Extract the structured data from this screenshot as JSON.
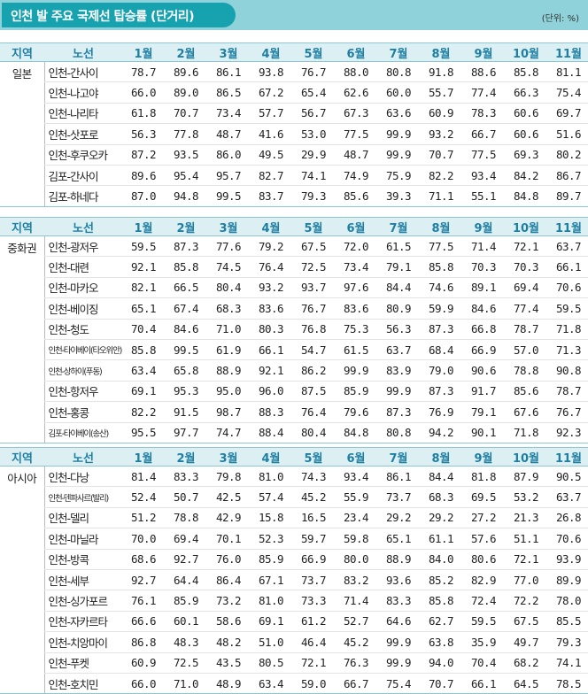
{
  "title": "인천 발 주요 국제선 탑승률 (단거리)",
  "unit": "(단위: %)",
  "header": {
    "region": "지역",
    "route": "노선",
    "months": [
      "1월",
      "2월",
      "3월",
      "4월",
      "5월",
      "6월",
      "7월",
      "8월",
      "9월",
      "10월",
      "11월"
    ]
  },
  "sections": [
    {
      "region": "일본",
      "rows": [
        {
          "route": "인천-간사이",
          "small": false,
          "values": [
            "78.7",
            "89.6",
            "86.1",
            "93.8",
            "76.7",
            "88.0",
            "80.8",
            "91.8",
            "88.6",
            "85.8",
            "81.1"
          ]
        },
        {
          "route": "인천-나고야",
          "small": false,
          "values": [
            "66.0",
            "89.0",
            "86.5",
            "67.2",
            "65.4",
            "62.6",
            "60.0",
            "55.7",
            "77.4",
            "66.3",
            "75.4"
          ]
        },
        {
          "route": "인천-나리타",
          "small": false,
          "values": [
            "61.8",
            "70.7",
            "73.4",
            "57.7",
            "56.7",
            "67.3",
            "63.6",
            "60.9",
            "78.3",
            "60.6",
            "69.7"
          ]
        },
        {
          "route": "인천-삿포로",
          "small": false,
          "values": [
            "56.3",
            "77.8",
            "48.7",
            "41.6",
            "53.0",
            "77.5",
            "99.9",
            "93.2",
            "66.7",
            "60.6",
            "51.6"
          ]
        },
        {
          "route": "인천-후쿠오카",
          "small": false,
          "values": [
            "87.2",
            "93.5",
            "86.0",
            "49.5",
            "29.9",
            "48.7",
            "99.9",
            "70.7",
            "77.5",
            "69.3",
            "80.2"
          ]
        },
        {
          "route": "김포-간사이",
          "small": false,
          "values": [
            "89.6",
            "95.4",
            "95.7",
            "82.7",
            "74.1",
            "74.9",
            "75.9",
            "82.2",
            "93.4",
            "84.2",
            "86.7"
          ]
        },
        {
          "route": "김포-하네다",
          "small": false,
          "values": [
            "87.0",
            "94.8",
            "99.5",
            "83.7",
            "79.3",
            "85.6",
            "39.3",
            "71.1",
            "55.1",
            "84.8",
            "89.7"
          ]
        }
      ]
    },
    {
      "region": "중화권",
      "rows": [
        {
          "route": "인천-광저우",
          "small": false,
          "values": [
            "59.5",
            "87.3",
            "77.6",
            "79.2",
            "67.5",
            "72.0",
            "61.5",
            "77.5",
            "71.4",
            "72.1",
            "63.7"
          ]
        },
        {
          "route": "인천-대련",
          "small": false,
          "values": [
            "92.1",
            "85.8",
            "74.5",
            "76.4",
            "72.5",
            "73.4",
            "79.1",
            "85.8",
            "70.3",
            "70.3",
            "66.1"
          ]
        },
        {
          "route": "인천-마카오",
          "small": false,
          "values": [
            "82.1",
            "66.5",
            "80.4",
            "93.2",
            "93.7",
            "97.6",
            "84.4",
            "74.6",
            "89.1",
            "69.4",
            "70.6"
          ]
        },
        {
          "route": "인천-베이징",
          "small": false,
          "values": [
            "65.1",
            "67.4",
            "68.3",
            "83.6",
            "76.7",
            "83.6",
            "80.9",
            "59.9",
            "84.6",
            "77.4",
            "59.5"
          ]
        },
        {
          "route": "인천-청도",
          "small": false,
          "values": [
            "70.4",
            "84.6",
            "71.0",
            "80.3",
            "76.8",
            "75.3",
            "56.3",
            "87.3",
            "66.8",
            "78.7",
            "71.8"
          ]
        },
        {
          "route": "인천-타이베이(타오위안)",
          "small": true,
          "values": [
            "85.8",
            "99.5",
            "61.9",
            "66.1",
            "54.7",
            "61.5",
            "63.7",
            "68.4",
            "66.9",
            "57.0",
            "71.3"
          ]
        },
        {
          "route": "인천-상하이(푸동)",
          "small": true,
          "values": [
            "63.4",
            "65.8",
            "88.9",
            "92.1",
            "86.2",
            "99.9",
            "83.9",
            "79.0",
            "90.6",
            "78.8",
            "90.8"
          ]
        },
        {
          "route": "인천-항저우",
          "small": false,
          "values": [
            "69.1",
            "95.3",
            "95.0",
            "96.0",
            "87.5",
            "85.9",
            "99.9",
            "87.3",
            "91.7",
            "85.6",
            "78.7"
          ]
        },
        {
          "route": "인천-홍콩",
          "small": false,
          "values": [
            "82.2",
            "91.5",
            "98.7",
            "88.3",
            "76.4",
            "79.6",
            "87.3",
            "76.9",
            "79.1",
            "67.6",
            "76.7"
          ]
        },
        {
          "route": "김포-타이베이(송산)",
          "small": true,
          "values": [
            "95.5",
            "97.7",
            "74.7",
            "88.4",
            "80.4",
            "84.8",
            "80.8",
            "94.2",
            "90.1",
            "71.8",
            "92.3"
          ]
        }
      ]
    },
    {
      "region": "아시아",
      "rows": [
        {
          "route": "인천-다낭",
          "small": false,
          "values": [
            "81.4",
            "83.3",
            "79.8",
            "81.0",
            "74.3",
            "93.4",
            "86.1",
            "84.4",
            "81.8",
            "87.9",
            "90.5"
          ]
        },
        {
          "route": "인천-덴파사르(발리)",
          "small": true,
          "values": [
            "52.4",
            "50.7",
            "42.5",
            "57.4",
            "45.2",
            "55.9",
            "73.7",
            "68.3",
            "69.5",
            "53.2",
            "63.7"
          ]
        },
        {
          "route": "인천-델리",
          "small": false,
          "values": [
            "51.2",
            "78.8",
            "42.9",
            "15.8",
            "16.5",
            "23.4",
            "29.2",
            "29.2",
            "27.2",
            "21.3",
            "26.8"
          ]
        },
        {
          "route": "인천-마닐라",
          "small": false,
          "values": [
            "70.0",
            "69.4",
            "70.1",
            "52.3",
            "59.7",
            "59.8",
            "65.1",
            "61.1",
            "57.6",
            "51.1",
            "70.6"
          ]
        },
        {
          "route": "인천-방콕",
          "small": false,
          "values": [
            "68.6",
            "92.7",
            "76.0",
            "85.9",
            "66.9",
            "80.0",
            "88.9",
            "84.0",
            "80.6",
            "72.1",
            "93.9"
          ]
        },
        {
          "route": "인천-세부",
          "small": false,
          "values": [
            "92.7",
            "64.4",
            "86.4",
            "67.1",
            "73.7",
            "83.2",
            "93.6",
            "85.2",
            "82.9",
            "77.0",
            "89.9"
          ]
        },
        {
          "route": "인천-싱가포르",
          "small": false,
          "values": [
            "76.1",
            "85.9",
            "73.2",
            "81.0",
            "73.3",
            "71.4",
            "83.3",
            "85.8",
            "72.4",
            "72.2",
            "78.0"
          ]
        },
        {
          "route": "인천-자카르타",
          "small": false,
          "values": [
            "66.6",
            "60.1",
            "58.6",
            "69.1",
            "61.2",
            "52.7",
            "64.6",
            "62.7",
            "59.5",
            "67.5",
            "85.5"
          ]
        },
        {
          "route": "인천-치앙마이",
          "small": false,
          "values": [
            "86.8",
            "48.3",
            "48.2",
            "51.0",
            "46.4",
            "45.2",
            "99.9",
            "63.8",
            "35.9",
            "49.7",
            "79.3"
          ]
        },
        {
          "route": "인천-푸켓",
          "small": false,
          "values": [
            "60.9",
            "72.5",
            "43.5",
            "80.5",
            "72.1",
            "76.3",
            "99.9",
            "94.0",
            "70.4",
            "68.2",
            "74.1"
          ]
        },
        {
          "route": "인천-호치민",
          "small": false,
          "values": [
            "66.0",
            "71.0",
            "48.9",
            "63.4",
            "59.0",
            "66.7",
            "75.4",
            "70.7",
            "66.1",
            "64.5",
            "78.5"
          ]
        }
      ]
    }
  ]
}
